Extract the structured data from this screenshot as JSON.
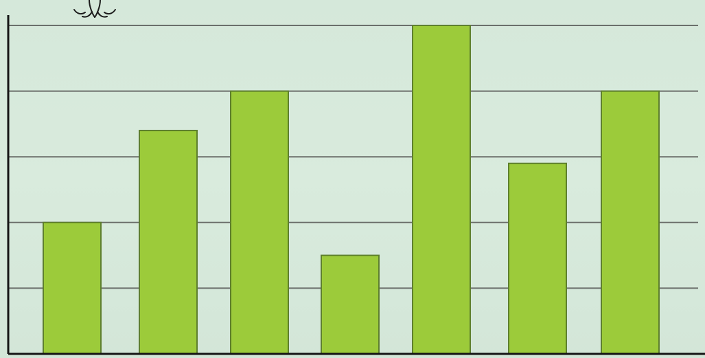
{
  "chart_data": {
    "type": "bar",
    "title": "",
    "xlabel": "",
    "ylabel": "",
    "categories": [
      "",
      "",
      "",
      "",
      "",
      "",
      ""
    ],
    "values": [
      2,
      3.4,
      4,
      1.5,
      5,
      2.9,
      4
    ],
    "ylim": [
      0,
      5
    ],
    "grid": true,
    "legend": "none"
  },
  "colors": {
    "background": "#d7e9db",
    "bar_fill": "#9ccb3a",
    "bar_stroke": "#5e7f2e",
    "grid": "#6b6f6b",
    "axis": "#151515"
  },
  "icons": {
    "top_left": "fountain-icon"
  }
}
